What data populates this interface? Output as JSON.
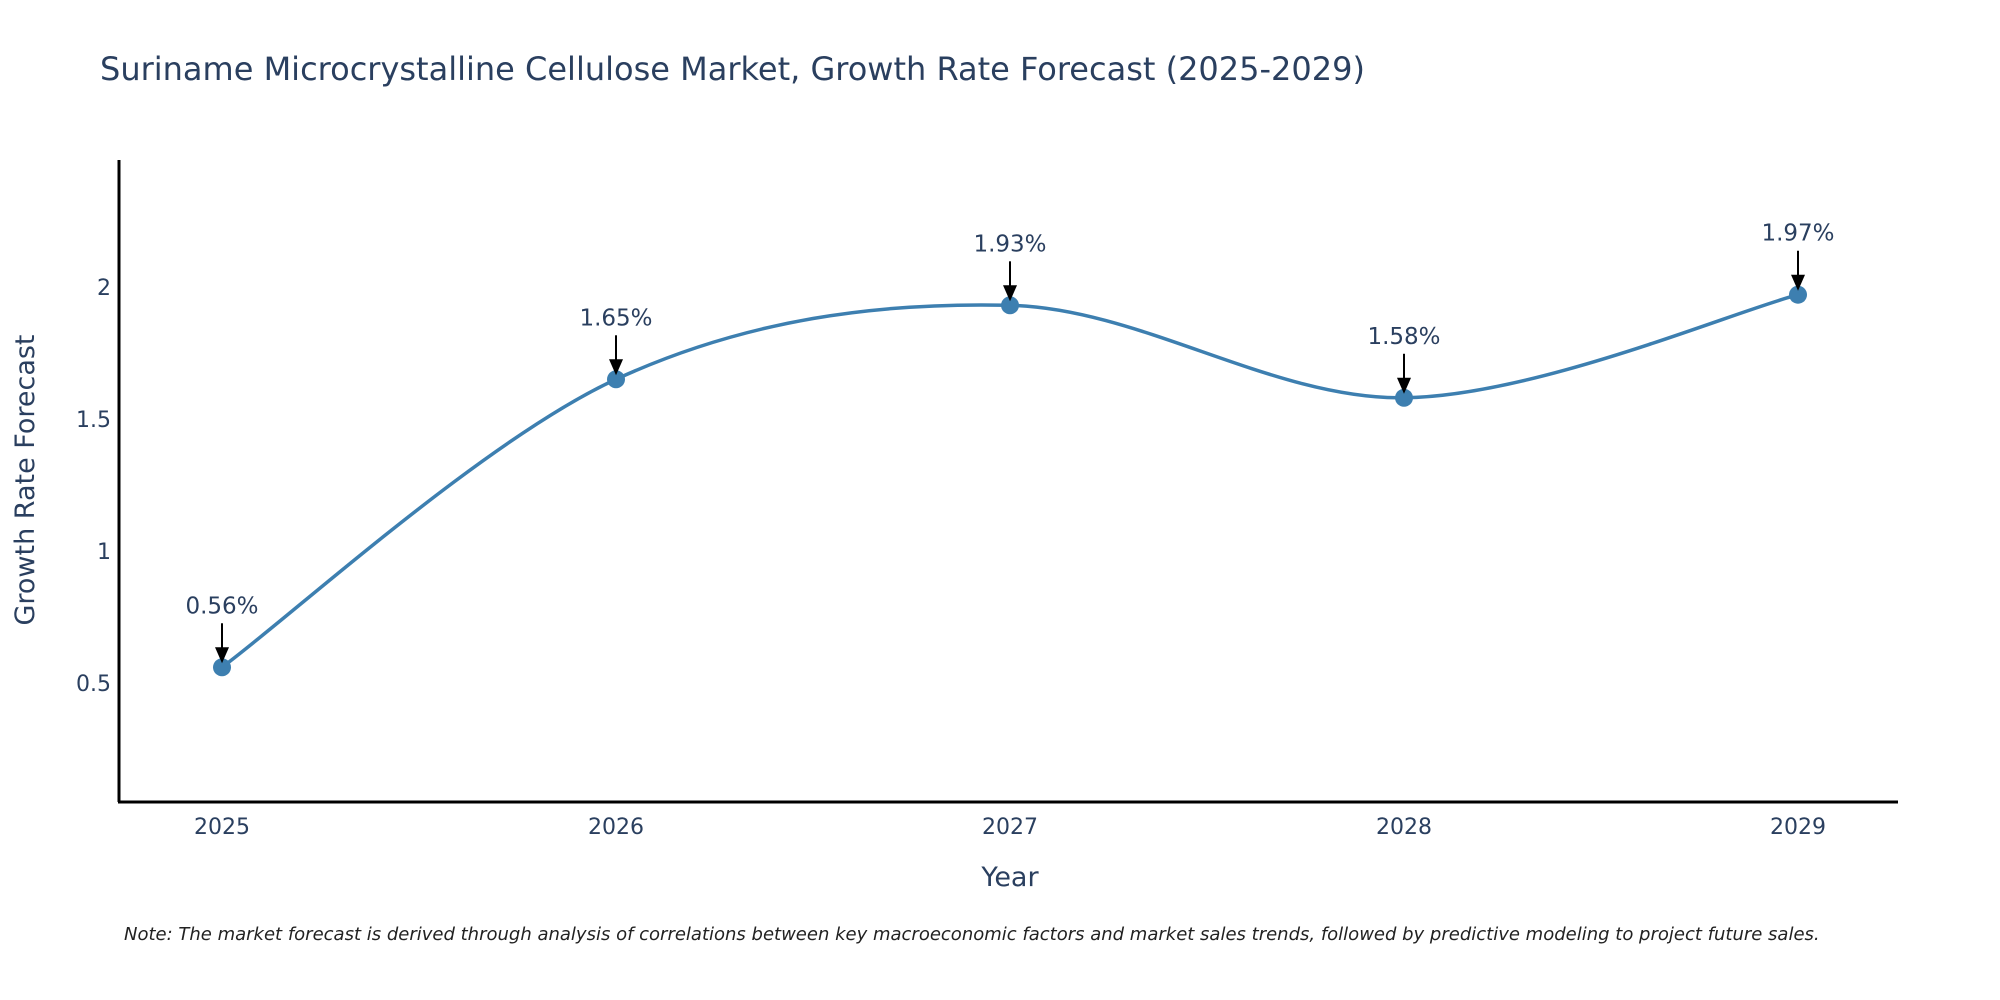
{
  "chart_data": {
    "type": "line",
    "title": "Suriname Microcrystalline Cellulose Market, Growth Rate Forecast (2025-2029)",
    "xlabel": "Year",
    "ylabel": "Growth Rate Forecast",
    "categories": [
      "2025",
      "2026",
      "2027",
      "2028",
      "2029"
    ],
    "values": [
      0.56,
      1.65,
      1.93,
      1.58,
      1.97
    ],
    "data_labels": [
      "0.56%",
      "1.65%",
      "1.93%",
      "1.58%",
      "1.97%"
    ],
    "yticks": [
      0.5,
      1,
      1.5,
      2
    ],
    "ytick_labels": [
      "0.5",
      "1",
      "1.5",
      "2"
    ],
    "ylim": [
      0.05,
      2.48
    ],
    "grid": false,
    "line_shape": "spline",
    "colors": {
      "line": "#3d7fb0",
      "marker": "#3d7fb0",
      "arrow": "#000000",
      "axis": "#000000",
      "text": "#2a3f5f"
    },
    "note": "Note: The market forecast is derived through analysis of correlations between key macroeconomic factors and market sales trends, followed by predictive modeling to project future sales."
  }
}
